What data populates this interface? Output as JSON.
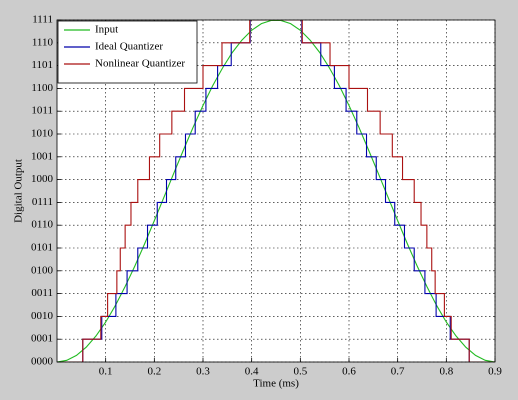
{
  "chart_data": {
    "type": "line",
    "xlabel": "Time (ms)",
    "ylabel": "Digital Output",
    "xlim": [
      0,
      0.9
    ],
    "xticks": [
      0.1,
      0.2,
      0.3,
      0.4,
      0.5,
      0.6,
      0.7,
      0.8,
      0.9
    ],
    "ylim": [
      0,
      15
    ],
    "yticks": [
      {
        "value": 0,
        "label": "0000"
      },
      {
        "value": 1,
        "label": "0001"
      },
      {
        "value": 2,
        "label": "0010"
      },
      {
        "value": 3,
        "label": "0011"
      },
      {
        "value": 4,
        "label": "0100"
      },
      {
        "value": 5,
        "label": "0101"
      },
      {
        "value": 6,
        "label": "0110"
      },
      {
        "value": 7,
        "label": "0111"
      },
      {
        "value": 8,
        "label": "1000"
      },
      {
        "value": 9,
        "label": "1001"
      },
      {
        "value": 10,
        "label": "1010"
      },
      {
        "value": 11,
        "label": "1011"
      },
      {
        "value": 12,
        "label": "1100"
      },
      {
        "value": 13,
        "label": "1101"
      },
      {
        "value": 14,
        "label": "1110"
      },
      {
        "value": 15,
        "label": "1111"
      }
    ],
    "grid": true,
    "legend": "upper left",
    "series": [
      {
        "name": "Input",
        "color": "#22bb22",
        "drawstyle": "default",
        "x": [
          0,
          0.02,
          0.04,
          0.06,
          0.08,
          0.1,
          0.12,
          0.14,
          0.16,
          0.18,
          0.2,
          0.22,
          0.24,
          0.26,
          0.28,
          0.3,
          0.32,
          0.34,
          0.36,
          0.38,
          0.4,
          0.42,
          0.44,
          0.46,
          0.48,
          0.5,
          0.52,
          0.54,
          0.56,
          0.58,
          0.6,
          0.62,
          0.64,
          0.66,
          0.68,
          0.7,
          0.72,
          0.74,
          0.76,
          0.78,
          0.8,
          0.82,
          0.84,
          0.86,
          0.88,
          0.9
        ],
        "values": [
          0,
          0.073,
          0.29,
          0.649,
          1.14,
          1.75,
          2.48,
          3.31,
          4.21,
          5.18,
          6.2,
          7.24,
          8.28,
          9.31,
          10.31,
          11.25,
          12.12,
          12.89,
          13.57,
          14.12,
          14.55,
          14.84,
          14.98,
          14.98,
          14.84,
          14.55,
          14.12,
          13.57,
          12.89,
          12.12,
          11.25,
          10.31,
          9.31,
          8.28,
          7.24,
          6.2,
          5.18,
          4.21,
          3.31,
          2.48,
          1.75,
          1.14,
          0.649,
          0.29,
          0.073,
          0
        ]
      },
      {
        "name": "Ideal Quantizer",
        "color": "#0000aa",
        "drawstyle": "steps-post",
        "x": [
          0,
          0.053,
          0.092,
          0.121,
          0.144,
          0.166,
          0.186,
          0.206,
          0.225,
          0.244,
          0.264,
          0.284,
          0.306,
          0.33,
          0.358,
          0.397,
          0.503,
          0.542,
          0.57,
          0.594,
          0.616,
          0.636,
          0.656,
          0.675,
          0.694,
          0.714,
          0.734,
          0.756,
          0.779,
          0.808,
          0.847,
          0.9
        ],
        "values": [
          0,
          1,
          2,
          3,
          4,
          5,
          6,
          7,
          8,
          9,
          10,
          11,
          12,
          13,
          14,
          15,
          14,
          13,
          12,
          11,
          10,
          9,
          8,
          7,
          6,
          5,
          4,
          3,
          2,
          1,
          0,
          0
        ]
      },
      {
        "name": "Nonlinear Quantizer",
        "color": "#aa1111",
        "drawstyle": "steps-post",
        "x": [
          0,
          0.053,
          0.09,
          0.104,
          0.123,
          0.13,
          0.14,
          0.152,
          0.166,
          0.19,
          0.211,
          0.236,
          0.262,
          0.3,
          0.339,
          0.396,
          0.504,
          0.561,
          0.6,
          0.638,
          0.664,
          0.689,
          0.71,
          0.734,
          0.748,
          0.76,
          0.77,
          0.777,
          0.796,
          0.81,
          0.847,
          0.9
        ],
        "values": [
          0,
          1,
          2,
          3,
          4,
          5,
          6,
          7,
          8,
          9,
          10,
          11,
          12,
          13,
          14,
          15,
          14,
          13,
          12,
          11,
          10,
          9,
          8,
          7,
          6,
          5,
          4,
          3,
          2,
          1,
          0,
          0
        ]
      }
    ]
  }
}
